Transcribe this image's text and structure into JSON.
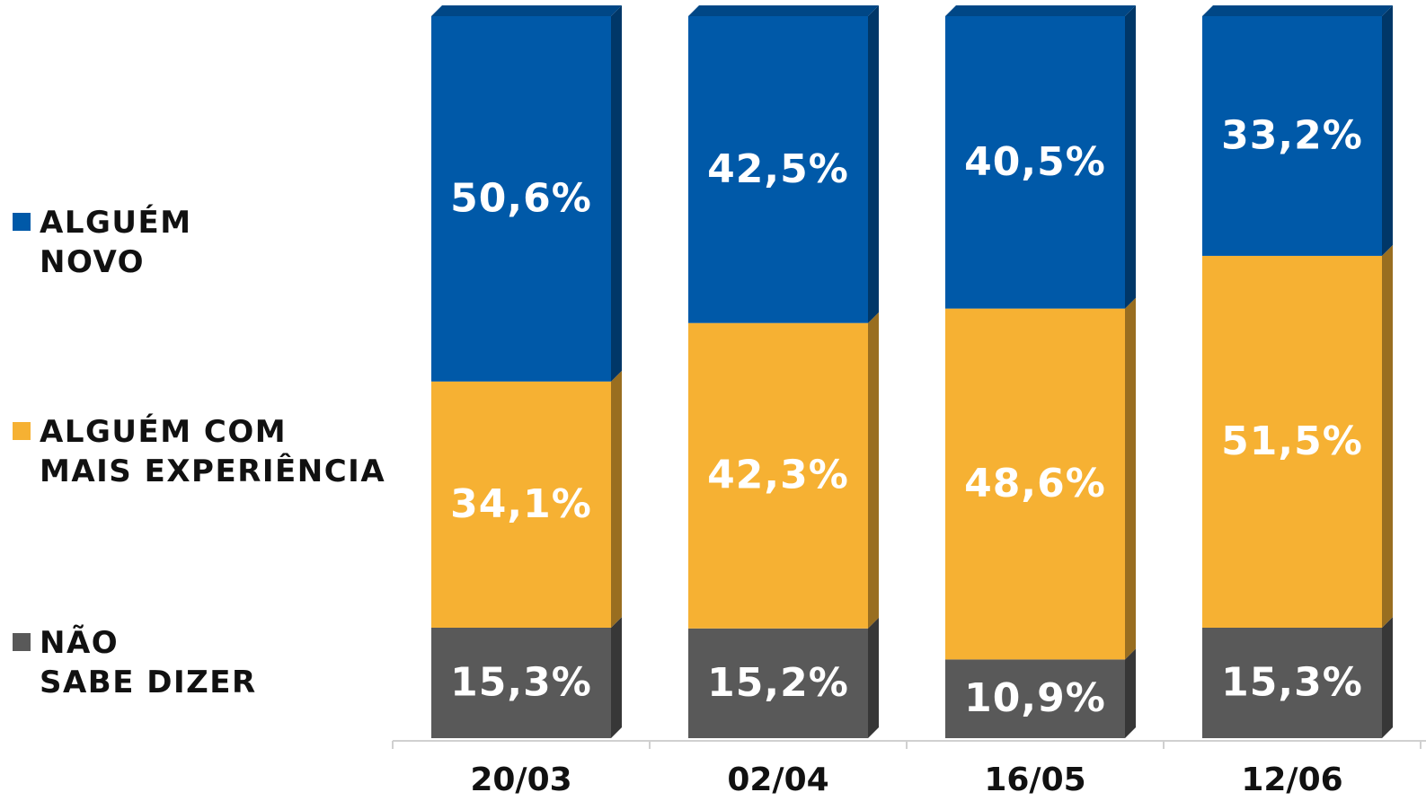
{
  "chart_data": {
    "type": "stacked_bar",
    "categories": [
      "20/03",
      "02/04",
      "16/05",
      "12/06"
    ],
    "ylim": [
      0,
      100
    ],
    "series": [
      {
        "name": "ALGUÉM\nNOVO",
        "color": "#0059a8",
        "values": [
          50.6,
          42.5,
          40.5,
          33.2
        ],
        "value_labels": [
          "50,6%",
          "42,5%",
          "40,5%",
          "33,2%"
        ]
      },
      {
        "name": "ALGUÉM COM\nMAIS EXPERIÊNCIA",
        "color": "#f6b133",
        "values": [
          34.1,
          42.3,
          48.6,
          51.5
        ],
        "value_labels": [
          "34,1%",
          "42,3%",
          "48,6%",
          "51,5%"
        ]
      },
      {
        "name": "NÃO\nSABE DIZER",
        "color": "#595959",
        "values": [
          15.3,
          15.2,
          10.9,
          15.3
        ],
        "value_labels": [
          "15,3%",
          "15,2%",
          "10,9%",
          "15,3%"
        ]
      }
    ]
  }
}
